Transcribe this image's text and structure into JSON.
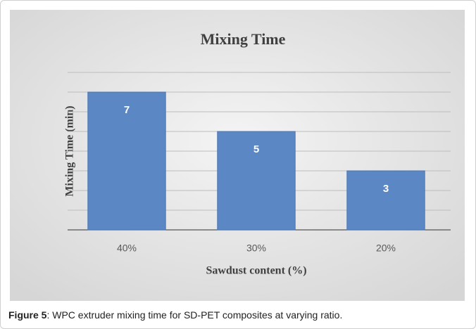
{
  "chart_data": {
    "type": "bar",
    "title": "Mixing Time",
    "x_label": "Sawdust content (%)",
    "y_label": "Mixing Time (min)",
    "categories": [
      "40%",
      "30%",
      "20%"
    ],
    "values": [
      7,
      5,
      3
    ],
    "color": "#5b87c5",
    "ylim": [
      0,
      8
    ],
    "yticks": [
      0,
      1,
      2,
      3,
      4,
      5,
      6,
      7,
      8
    ],
    "grid": true
  },
  "caption": {
    "label": "Figure 5",
    "text": ": WPC extruder mixing time for SD-PET composites at varying ratio."
  }
}
